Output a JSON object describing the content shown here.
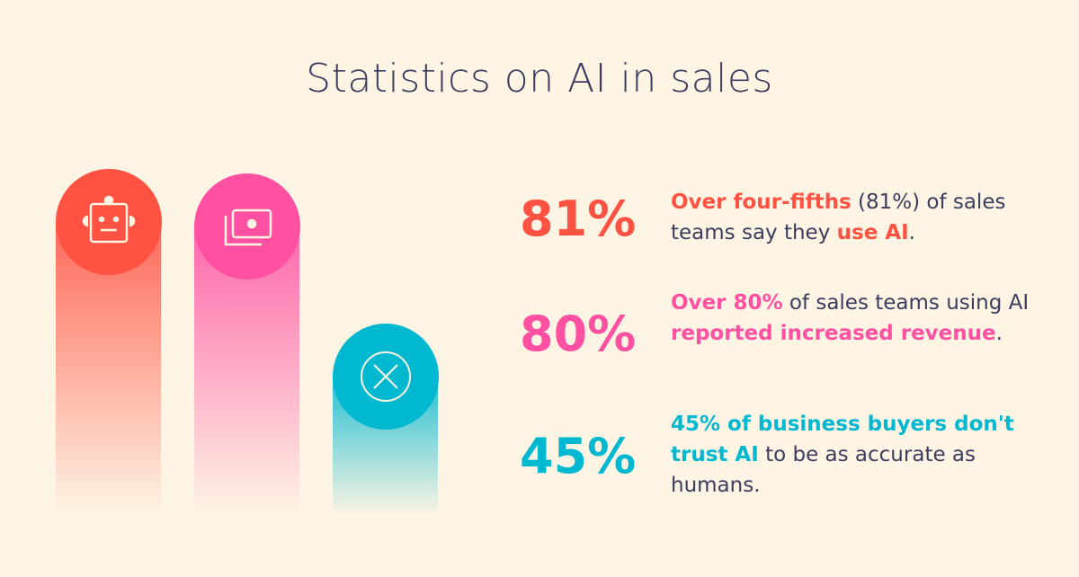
{
  "title": "Statistics on AI in sales",
  "colors": {
    "red": "#ff5243",
    "pink": "#ff50a2",
    "cyan": "#00b8d0",
    "text": "#3b3c5e",
    "background": "#fdf4e4"
  },
  "chart_data": {
    "type": "bar",
    "title": "Statistics on AI in sales",
    "categories": [
      "81%",
      "80%",
      "45%"
    ],
    "values": [
      81,
      80,
      45
    ],
    "ylim": [
      0,
      100
    ],
    "icons": [
      "robot-icon",
      "money-icon",
      "x-circle-icon"
    ]
  },
  "stats": [
    {
      "value": "81%",
      "parts": [
        {
          "t": "Over four-fifths",
          "hl": true
        },
        {
          "t": " (81%) of sales teams say they ",
          "hl": false
        },
        {
          "t": "use AI",
          "hl": true
        },
        {
          "t": ".",
          "hl": false
        }
      ]
    },
    {
      "value": "80%",
      "parts": [
        {
          "t": "Over 80%",
          "hl": true
        },
        {
          "t": " of sales teams using AI ",
          "hl": false
        },
        {
          "t": "reported increased revenue",
          "hl": true
        },
        {
          "t": ".",
          "hl": false
        }
      ]
    },
    {
      "value": "45%",
      "parts": [
        {
          "t": "45% of business buyers don't trust AI",
          "hl": true
        },
        {
          "t": " to be as accurate as humans.",
          "hl": false
        }
      ]
    }
  ]
}
